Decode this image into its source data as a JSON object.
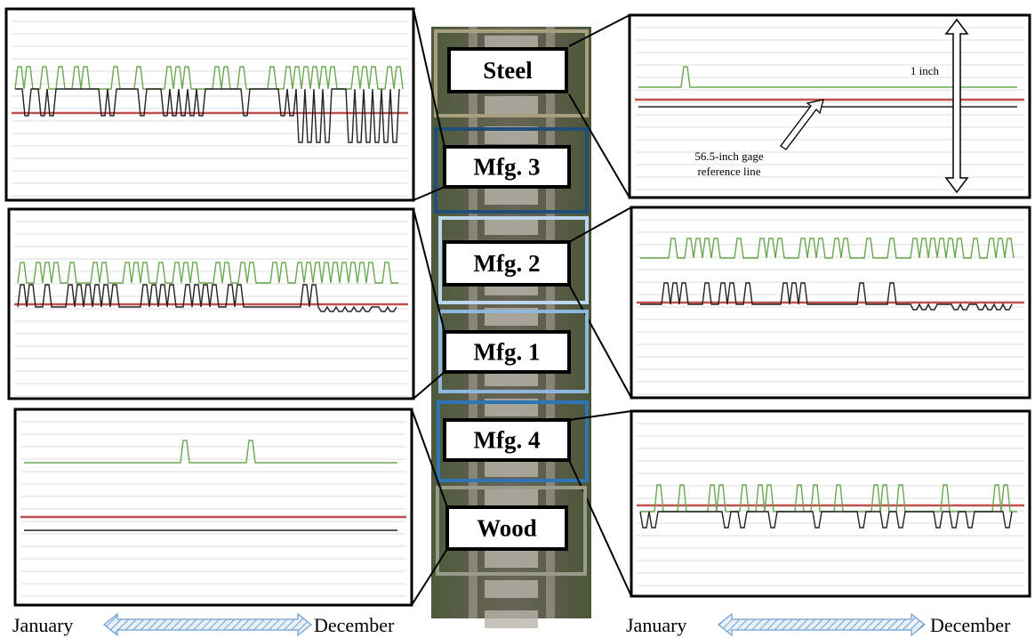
{
  "track_labels": [
    "Steel",
    "Mfg. 3",
    "Mfg. 2",
    "Mfg. 1",
    "Mfg. 4",
    "Wood"
  ],
  "annotations": {
    "scale": "1 inch",
    "reference_line": [
      "56.5-inch gage",
      "reference line"
    ]
  },
  "timeline_left": {
    "start": "January",
    "end": "December"
  },
  "timeline_right": {
    "start": "January",
    "end": "December"
  }
}
